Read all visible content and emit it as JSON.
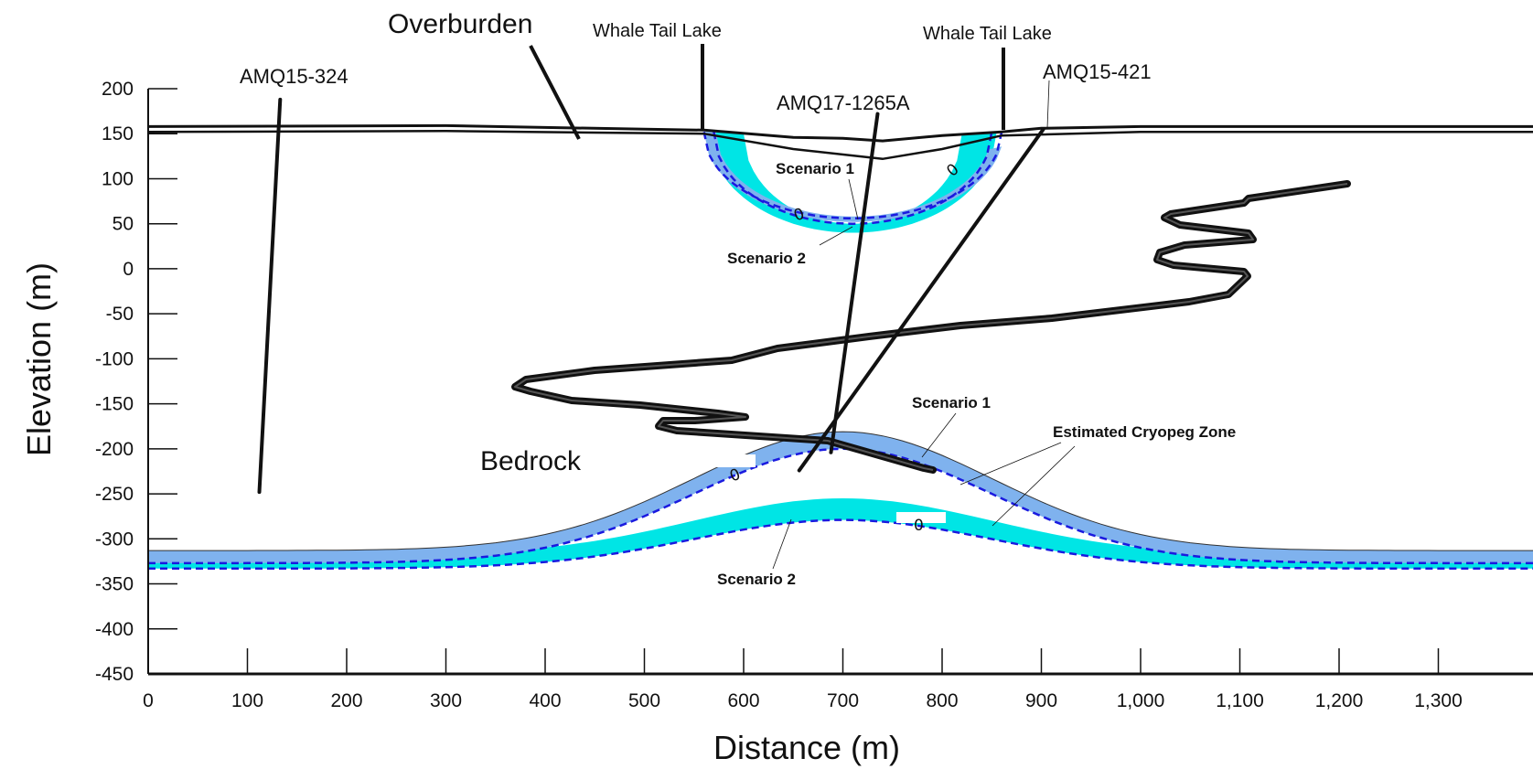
{
  "chart_data": {
    "type": "cross-section",
    "xlabel": "Distance (m)",
    "ylabel": "Elevation (m)",
    "xlim": [
      0,
      1400
    ],
    "ylim": [
      -450,
      200
    ],
    "x_ticks": [
      "0",
      "100",
      "200",
      "300",
      "400",
      "500",
      "600",
      "700",
      "800",
      "900",
      "1,000",
      "1,100",
      "1,200",
      "1,300"
    ],
    "y_ticks": [
      "200",
      "150",
      "100",
      "50",
      "0",
      "-50",
      "-100",
      "-150",
      "-200",
      "-250",
      "-300",
      "-350",
      "-400",
      "-450"
    ],
    "labels": {
      "overburden": "Overburden",
      "bedrock": "Bedrock",
      "lake_left": "Whale Tail Lake",
      "lake_right": "Whale Tail Lake",
      "cryopeg": "Estimated Cryopeg Zone",
      "lake_scenario1": "Scenario 1",
      "lake_scenario2": "Scenario 2",
      "deep_scenario1": "Scenario 1",
      "deep_scenario2": "Scenario 2",
      "zero": "0"
    },
    "boreholes": [
      {
        "name": "AMQ15-324",
        "top": [
          133,
          188
        ],
        "bottom": [
          112,
          -248
        ]
      },
      {
        "name": "AMQ17-1265A",
        "top": [
          735,
          172
        ],
        "bottom": [
          688,
          -204
        ]
      },
      {
        "name": "AMQ15-421",
        "top": [
          902,
          155
        ],
        "bottom": [
          656,
          -224
        ]
      }
    ],
    "ground_surface": [
      [
        0,
        158
      ],
      [
        300,
        159
      ],
      [
        500,
        155
      ],
      [
        560,
        154
      ],
      [
        650,
        146
      ],
      [
        700,
        145
      ],
      [
        740,
        142
      ],
      [
        800,
        148
      ],
      [
        860,
        152
      ],
      [
        900,
        156
      ],
      [
        1000,
        158
      ],
      [
        1400,
        158
      ]
    ],
    "overburden_base": [
      [
        0,
        152
      ],
      [
        300,
        153
      ],
      [
        560,
        150
      ],
      [
        650,
        133
      ],
      [
        740,
        122
      ],
      [
        800,
        133
      ],
      [
        860,
        148
      ],
      [
        1000,
        152
      ],
      [
        1400,
        152
      ]
    ],
    "colors": {
      "scenario1_fill": "#7fb2ee",
      "scenario2_fill": "#00e5e5",
      "isotherm": "#1a1adf",
      "line": "#111111"
    }
  }
}
